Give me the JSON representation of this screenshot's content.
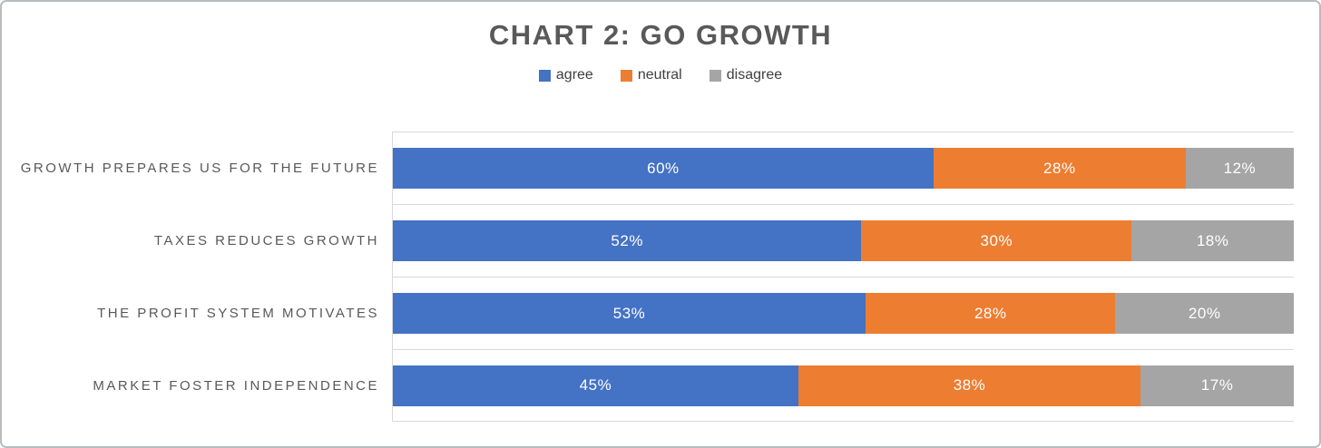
{
  "chart_data": {
    "type": "bar",
    "orientation": "horizontal",
    "stacked": true,
    "normalized_100_percent": true,
    "title": "CHART 2: GO GROWTH",
    "xlabel": "",
    "ylabel": "",
    "legend_position": "top",
    "grid": "category separator lines, light gray",
    "categories": [
      "GROWTH PREPARES US FOR THE FUTURE",
      "TAXES REDUCES GROWTH",
      "THE PROFIT SYSTEM MOTIVATES",
      "MARKET FOSTER INDEPENDENCE"
    ],
    "series": [
      {
        "name": "agree",
        "color": "#4472C4",
        "values": [
          60,
          52,
          53,
          45
        ],
        "labels": [
          "60%",
          "52%",
          "53%",
          "45%"
        ]
      },
      {
        "name": "neutral",
        "color": "#ED7D31",
        "values": [
          28,
          30,
          28,
          38
        ],
        "labels": [
          "28%",
          "30%",
          "28%",
          "38%"
        ]
      },
      {
        "name": "disagree",
        "color": "#A5A5A5",
        "values": [
          12,
          18,
          20,
          17
        ],
        "labels": [
          "12%",
          "18%",
          "20%",
          "17%"
        ]
      }
    ]
  },
  "colors": {
    "title_text": "#595959",
    "category_text": "#595959",
    "legend_text": "#404040",
    "value_label_text": "#ffffff",
    "gridline": "#d9d9d9",
    "frame_border": "#b9bcbf",
    "background": "#ffffff"
  }
}
